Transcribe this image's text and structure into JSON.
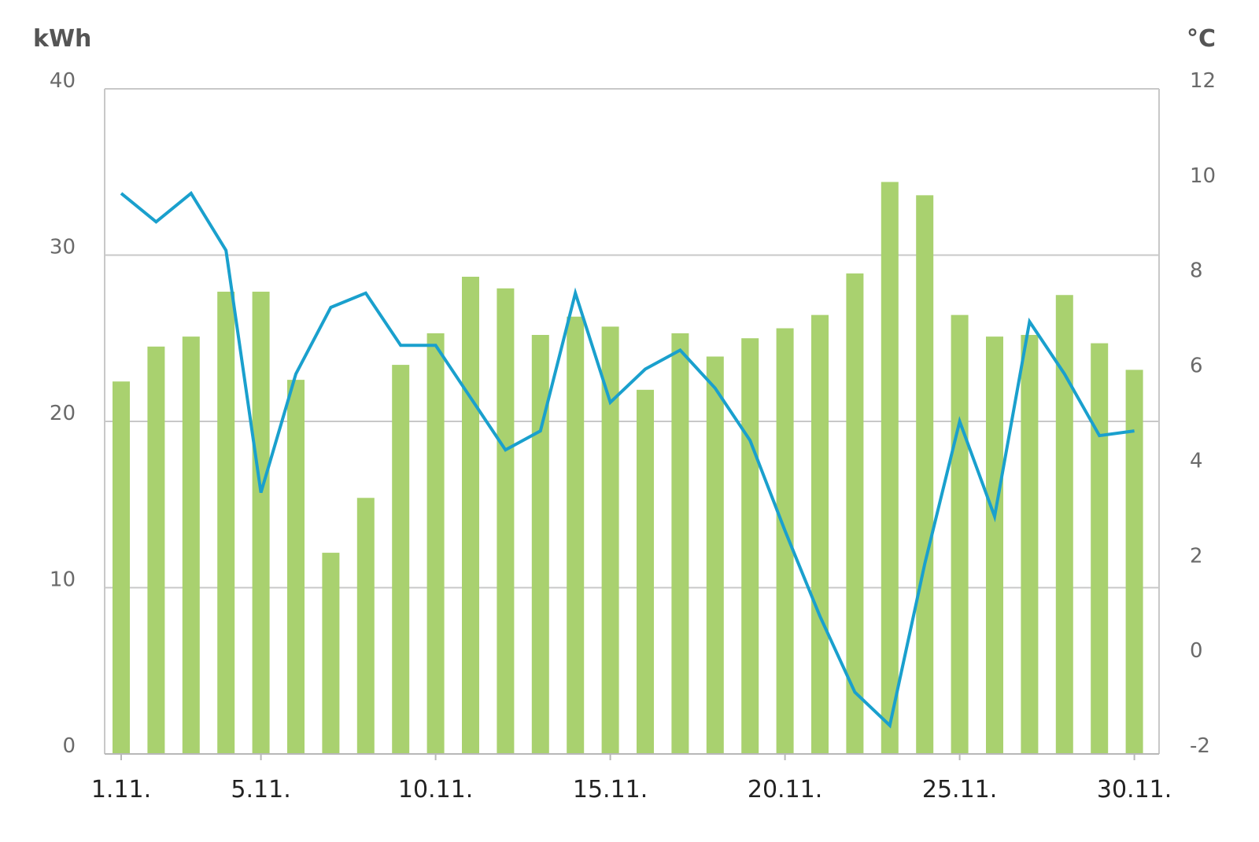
{
  "chart_data": {
    "type": "bar",
    "categories": [
      "1.11.",
      "2.11.",
      "3.11.",
      "4.11.",
      "5.11.",
      "6.11.",
      "7.11.",
      "8.11.",
      "9.11.",
      "10.11.",
      "11.11.",
      "12.11.",
      "13.11.",
      "14.11.",
      "15.11.",
      "16.11.",
      "17.11.",
      "18.11.",
      "19.11.",
      "20.11.",
      "21.11.",
      "22.11.",
      "23.11.",
      "24.11.",
      "25.11.",
      "26.11.",
      "27.11.",
      "28.11.",
      "29.11.",
      "30.11."
    ],
    "x_tick_labels": [
      "1.11.",
      "5.11.",
      "10.11.",
      "15.11.",
      "20.11.",
      "25.11.",
      "30.11."
    ],
    "x_tick_indices": [
      0,
      4,
      9,
      14,
      19,
      24,
      29
    ],
    "series": [
      {
        "axis": "left",
        "kind": "bar",
        "color": "#a9d16f",
        "values": [
          22.4,
          24.5,
          25.1,
          27.8,
          27.8,
          22.5,
          12.1,
          15.4,
          23.4,
          25.3,
          28.7,
          28.0,
          25.2,
          26.3,
          25.7,
          21.9,
          25.3,
          23.9,
          25.0,
          25.6,
          26.4,
          28.9,
          34.4,
          33.6,
          26.4,
          25.1,
          25.2,
          27.6,
          24.7,
          23.1
        ]
      },
      {
        "axis": "right",
        "kind": "line",
        "color": "#1aa0cd",
        "values": [
          9.8,
          9.2,
          9.8,
          8.6,
          3.5,
          6.0,
          7.4,
          7.7,
          6.6,
          6.6,
          5.5,
          4.4,
          4.8,
          7.7,
          5.4,
          6.1,
          6.5,
          5.7,
          4.6,
          2.7,
          0.9,
          -0.7,
          -1.4,
          2.0,
          5.0,
          3.0,
          7.1,
          6.0,
          4.7,
          4.8
        ]
      }
    ],
    "ylabel_left": "kWh",
    "ylabel_right": "°C",
    "ylim_left": [
      0,
      40
    ],
    "ylim_right": [
      -2,
      12
    ],
    "y_ticks_left": [
      "0",
      "10",
      "20",
      "30",
      "40"
    ],
    "y_ticks_right": [
      "-2",
      "0",
      "2",
      "4",
      "6",
      "8",
      "10",
      "12"
    ],
    "grid": true,
    "legend": "none"
  }
}
